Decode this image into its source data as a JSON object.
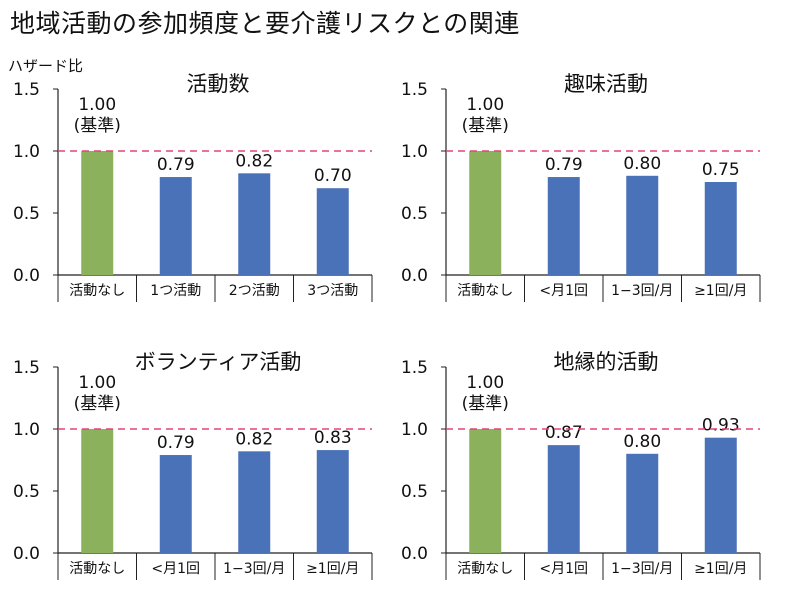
{
  "title": "地域活動の参加頻度と要介護リスクとの関連",
  "ylabel": "ハザード比",
  "colors": {
    "reference": "#8bb15c",
    "bar": "#4a72b8",
    "refline": "#e0457a"
  },
  "chart_data": [
    {
      "type": "bar",
      "title": "活動数",
      "categories": [
        "活動なし",
        "1つ活動",
        "2つ活動",
        "3つ活動"
      ],
      "values": [
        1.0,
        0.79,
        0.82,
        0.7
      ],
      "value_labels": [
        "1.00",
        "0.79",
        "0.82",
        "0.70"
      ],
      "reference_note": "(基準)",
      "reference_line": 1.0,
      "ylabel": "ハザード比",
      "yticks": [
        "0.0",
        "0.5",
        "1.0",
        "1.5"
      ],
      "ylim": [
        0,
        1.5
      ],
      "grid": false
    },
    {
      "type": "bar",
      "title": "趣味活動",
      "categories": [
        "活動なし",
        "<月1回",
        "1−3回/月",
        "≥1回/月"
      ],
      "values": [
        1.0,
        0.79,
        0.8,
        0.75
      ],
      "value_labels": [
        "1.00",
        "0.79",
        "0.80",
        "0.75"
      ],
      "reference_note": "(基準)",
      "reference_line": 1.0,
      "yticks": [
        "0.0",
        "0.5",
        "1.0",
        "1.5"
      ],
      "ylim": [
        0,
        1.5
      ],
      "grid": false
    },
    {
      "type": "bar",
      "title": "ボランティア活動",
      "categories": [
        "活動なし",
        "<月1回",
        "1−3回/月",
        "≥1回/月"
      ],
      "values": [
        1.0,
        0.79,
        0.82,
        0.83
      ],
      "value_labels": [
        "1.00",
        "0.79",
        "0.82",
        "0.83"
      ],
      "reference_note": "(基準)",
      "reference_line": 1.0,
      "yticks": [
        "0.0",
        "0.5",
        "1.0",
        "1.5"
      ],
      "ylim": [
        0,
        1.5
      ],
      "grid": false
    },
    {
      "type": "bar",
      "title": "地縁的活動",
      "categories": [
        "活動なし",
        "<月1回",
        "1−3回/月",
        "≥1回/月"
      ],
      "values": [
        1.0,
        0.87,
        0.8,
        0.93
      ],
      "value_labels": [
        "1.00",
        "0.87",
        "0.80",
        "0.93"
      ],
      "reference_note": "(基準)",
      "reference_line": 1.0,
      "yticks": [
        "0.0",
        "0.5",
        "1.0",
        "1.5"
      ],
      "ylim": [
        0,
        1.5
      ],
      "grid": false
    }
  ]
}
